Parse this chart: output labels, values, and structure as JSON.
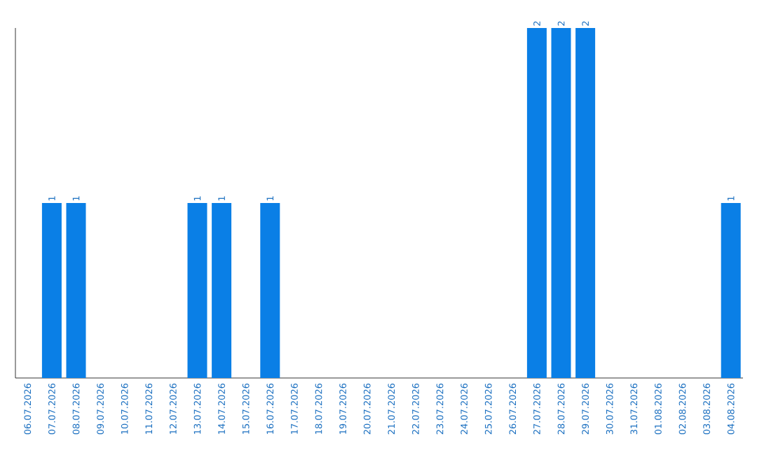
{
  "chart_data": {
    "type": "bar",
    "categories": [
      "06.07.2026",
      "07.07.2026",
      "08.07.2026",
      "09.07.2026",
      "10.07.2026",
      "11.07.2026",
      "12.07.2026",
      "13.07.2026",
      "14.07.2026",
      "15.07.2026",
      "16.07.2026",
      "17.07.2026",
      "18.07.2026",
      "19.07.2026",
      "20.07.2026",
      "21.07.2026",
      "22.07.2026",
      "23.07.2026",
      "24.07.2026",
      "25.07.2026",
      "26.07.2026",
      "27.07.2026",
      "28.07.2026",
      "29.07.2026",
      "30.07.2026",
      "31.07.2026",
      "01.08.2026",
      "02.08.2026",
      "03.08.2026",
      "04.08.2026"
    ],
    "values": [
      0,
      1,
      1,
      0,
      0,
      0,
      0,
      1,
      1,
      0,
      1,
      0,
      0,
      0,
      0,
      0,
      0,
      0,
      0,
      0,
      0,
      2,
      2,
      2,
      0,
      0,
      0,
      0,
      0,
      1
    ],
    "value_labels": [
      null,
      "1",
      "1",
      null,
      null,
      null,
      null,
      "1",
      "1",
      null,
      "1",
      null,
      null,
      null,
      null,
      null,
      null,
      null,
      null,
      null,
      null,
      "2",
      "2",
      "2",
      null,
      null,
      null,
      null,
      null,
      "1"
    ],
    "color": "#0a7fe6",
    "ylim": [
      0,
      2
    ],
    "tick_labels": "x"
  }
}
